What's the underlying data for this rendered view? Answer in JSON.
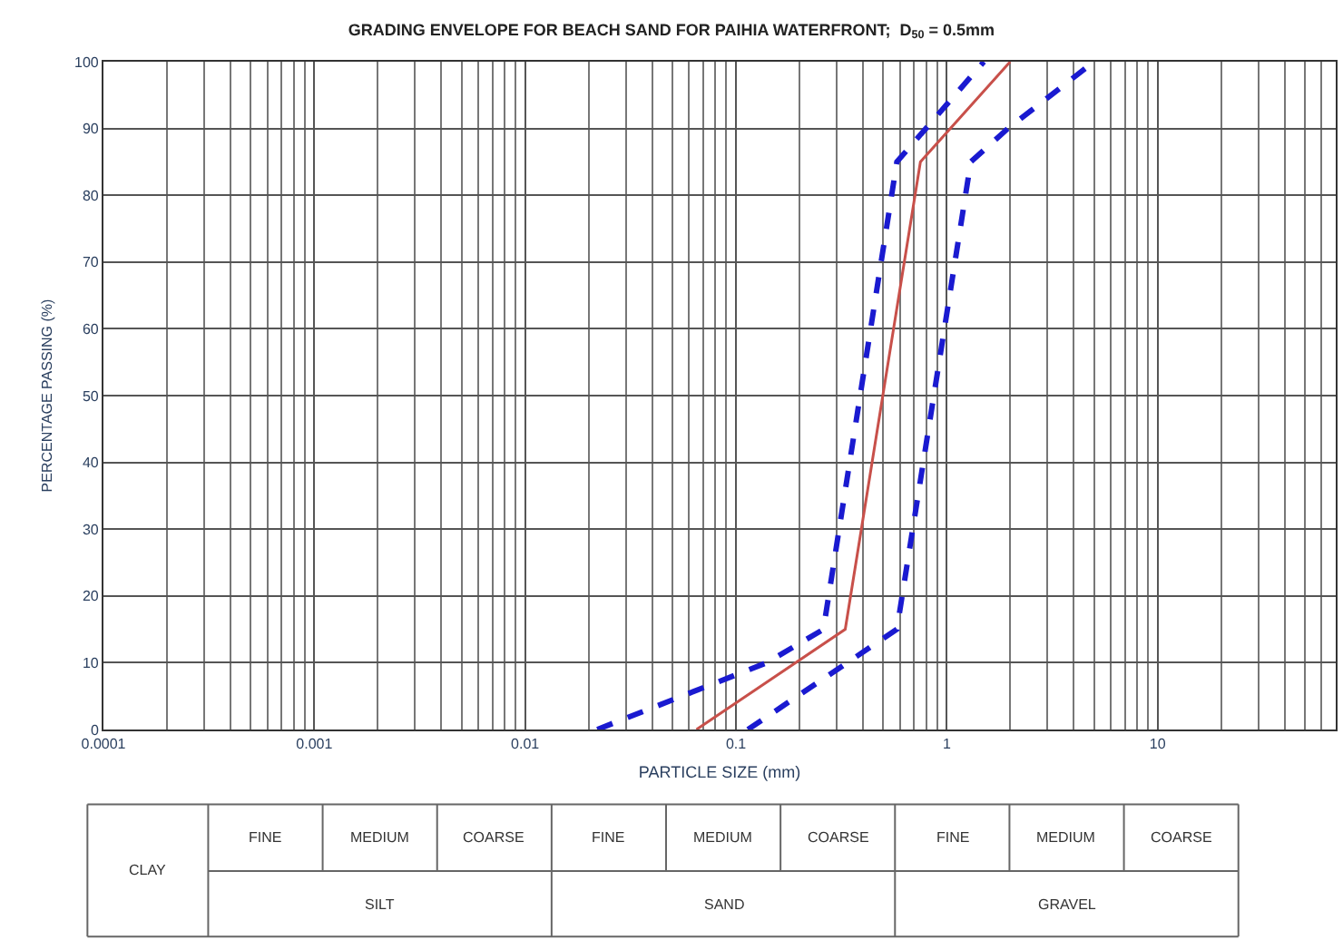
{
  "chart_data": {
    "type": "line",
    "title": "GRADING ENVELOPE FOR BEACH SAND FOR PAIHIA WATERFRONT;  D$_{50}$ = 0.5mm",
    "xlabel": "PARTICLE SIZE (mm)",
    "ylabel": "PERCENTAGE PASSING (%)",
    "log": "x",
    "grid": true,
    "marker": "none",
    "xlim": [
      0.0001,
      70
    ],
    "xticks": [
      0.0001,
      0.001,
      0.01,
      0.1,
      1,
      10
    ],
    "ylim": [
      0,
      100
    ],
    "yticks": [
      0,
      10,
      20,
      30,
      40,
      50,
      60,
      70,
      80,
      90,
      100
    ],
    "series": [
      {
        "color": "#1a1ad0",
        "line_style": "dashed",
        "x": [
          0.022,
          0.14,
          0.26,
          0.58,
          1.5
        ],
        "values": [
          0,
          10,
          15,
          85,
          100
        ]
      },
      {
        "color": "#c8504a",
        "line_style": "solid",
        "x": [
          0.065,
          0.33,
          0.75,
          2.0
        ],
        "values": [
          0,
          15,
          85,
          100
        ]
      },
      {
        "color": "#1a1ad0",
        "line_style": "dashed",
        "x": [
          0.114,
          0.58,
          1.3,
          1.95,
          5.0
        ],
        "values": [
          0,
          15,
          85,
          90,
          100
        ]
      }
    ],
    "annotations": [
      "CLAY",
      "FINE",
      "MEDIUM",
      "COARSE",
      "FINE",
      "MEDIUM",
      "COARSE",
      "FINE",
      "MEDIUM",
      "COARSE",
      "SILT",
      "SAND",
      "GRAVEL"
    ]
  }
}
